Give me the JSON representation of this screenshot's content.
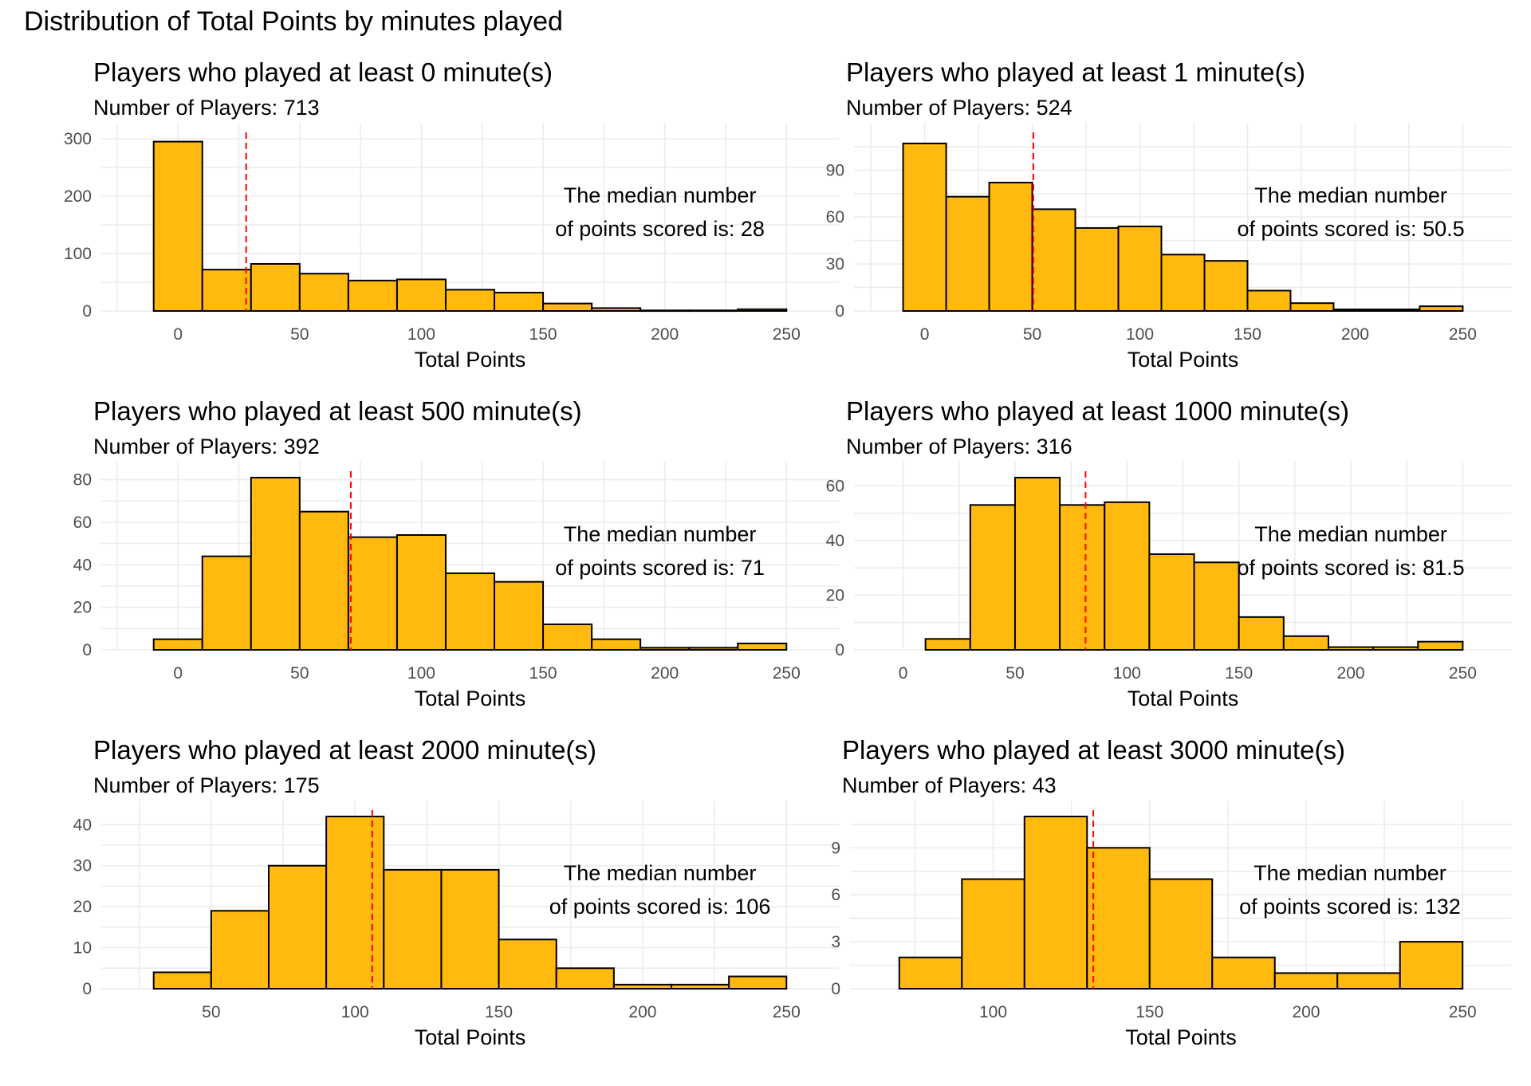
{
  "figure_title": "Distribution of Total Points by minutes played",
  "colors": {
    "bar_fill": "#FFB90F",
    "bar_stroke": "#000000",
    "median_line": "#FF0000",
    "grid": "#EBEBEB"
  },
  "chart_data": [
    {
      "type": "bar",
      "title": "Players who played at least 0 minute(s)",
      "subtitle": "Number of Players: 713",
      "xlabel": "Total Points",
      "ylabel": "",
      "bin_width": 20,
      "bin_centers": [
        0,
        20,
        40,
        60,
        80,
        100,
        120,
        140,
        160,
        180,
        200,
        220,
        240
      ],
      "values": [
        295,
        72,
        82,
        65,
        53,
        55,
        37,
        32,
        13,
        5,
        1,
        1,
        3
      ],
      "median": 28,
      "annotation_line1": "The median number",
      "annotation_line2": "of points scored is: 28",
      "xlim": [
        -10,
        250
      ],
      "ylim": [
        0,
        300
      ],
      "xticks": [
        0,
        50,
        100,
        150,
        200,
        250
      ],
      "xtick_labels": [
        "0",
        "50",
        "100",
        "150",
        "200",
        "250"
      ],
      "yticks": [
        0,
        100,
        200,
        300
      ],
      "ytick_labels": [
        "0",
        "100",
        "200",
        "300"
      ],
      "grid": true
    },
    {
      "type": "bar",
      "title": "Players who played at least 1 minute(s)",
      "subtitle": "Number of Players: 524",
      "xlabel": "Total Points",
      "ylabel": "",
      "bin_width": 20,
      "bin_centers": [
        0,
        20,
        40,
        60,
        80,
        100,
        120,
        140,
        160,
        180,
        200,
        220,
        240
      ],
      "values": [
        107,
        73,
        82,
        65,
        53,
        54,
        36,
        32,
        13,
        5,
        1,
        1,
        3
      ],
      "median": 50.5,
      "annotation_line1": "The median number",
      "annotation_line2": "of points scored is: 50.5",
      "xlim": [
        -10,
        250
      ],
      "ylim": [
        0,
        110
      ],
      "xticks": [
        0,
        50,
        100,
        150,
        200,
        250
      ],
      "xtick_labels": [
        "0",
        "50",
        "100",
        "150",
        "200",
        "250"
      ],
      "yticks": [
        0,
        30,
        60,
        90
      ],
      "ytick_labels": [
        "0",
        "30",
        "60",
        "90"
      ],
      "grid": true
    },
    {
      "type": "bar",
      "title": "Players who played at least 500 minute(s)",
      "subtitle": "Number of Players: 392",
      "xlabel": "Total Points",
      "ylabel": "",
      "bin_width": 20,
      "bin_centers": [
        0,
        20,
        40,
        60,
        80,
        100,
        120,
        140,
        160,
        180,
        200,
        220,
        240
      ],
      "values": [
        5,
        44,
        81,
        65,
        53,
        54,
        36,
        32,
        12,
        5,
        1,
        1,
        3
      ],
      "median": 71,
      "annotation_line1": "The median number",
      "annotation_line2": "of points scored is: 71",
      "xlim": [
        -10,
        250
      ],
      "ylim": [
        0,
        81
      ],
      "xticks": [
        0,
        50,
        100,
        150,
        200,
        250
      ],
      "xtick_labels": [
        "0",
        "50",
        "100",
        "150",
        "200",
        "250"
      ],
      "yticks": [
        0,
        20,
        40,
        60,
        80
      ],
      "ytick_labels": [
        "0",
        "20",
        "40",
        "60",
        "80"
      ],
      "grid": true
    },
    {
      "type": "bar",
      "title": "Players who played at least 1000 minute(s)",
      "subtitle": "Number of Players: 316",
      "xlabel": "Total Points",
      "ylabel": "",
      "bin_width": 20,
      "bin_centers": [
        20,
        40,
        60,
        80,
        100,
        120,
        140,
        160,
        180,
        200,
        220,
        240
      ],
      "values": [
        4,
        53,
        63,
        53,
        54,
        35,
        32,
        12,
        5,
        1,
        1,
        3
      ],
      "median": 81.5,
      "annotation_line1": "The median number",
      "annotation_line2": "of points scored is: 81.5",
      "xlim": [
        0,
        250
      ],
      "ylim": [
        0,
        63
      ],
      "xticks": [
        0,
        50,
        100,
        150,
        200,
        250
      ],
      "xtick_labels": [
        "0",
        "50",
        "100",
        "150",
        "200",
        "250"
      ],
      "yticks": [
        0,
        20,
        40,
        60
      ],
      "ytick_labels": [
        "0",
        "20",
        "40",
        "60"
      ],
      "grid": true
    },
    {
      "type": "bar",
      "title": "Players who played at least 2000 minute(s)",
      "subtitle": "Number of Players: 175",
      "xlabel": "Total Points",
      "ylabel": "",
      "bin_width": 20,
      "bin_centers": [
        40,
        60,
        80,
        100,
        120,
        140,
        160,
        180,
        200,
        220,
        240
      ],
      "values": [
        4,
        19,
        30,
        42,
        29,
        29,
        12,
        5,
        1,
        1,
        3
      ],
      "median": 106,
      "annotation_line1": "The median number",
      "annotation_line2": "of points scored is: 106",
      "xlim": [
        30,
        250
      ],
      "ylim": [
        0,
        42
      ],
      "xticks": [
        50,
        100,
        150,
        200,
        250
      ],
      "xtick_labels": [
        "50",
        "100",
        "150",
        "200",
        "250"
      ],
      "yticks": [
        0,
        10,
        20,
        30,
        40
      ],
      "ytick_labels": [
        "0",
        "10",
        "20",
        "30",
        "40"
      ],
      "grid": true
    },
    {
      "type": "bar",
      "title": "Players who played at least 3000 minute(s)",
      "subtitle": "Number of Players: 43",
      "xlabel": "Total Points",
      "ylabel": "",
      "bin_width": 20,
      "bin_centers": [
        80,
        100,
        120,
        140,
        160,
        180,
        200,
        220,
        240
      ],
      "values": [
        2,
        7,
        11,
        9,
        7,
        2,
        1,
        1,
        3
      ],
      "median": 132,
      "annotation_line1": "The median number",
      "annotation_line2": "of points scored is: 132",
      "xlim": [
        70,
        250
      ],
      "ylim": [
        0,
        11
      ],
      "xticks": [
        100,
        150,
        200,
        250
      ],
      "xtick_labels": [
        "100",
        "150",
        "200",
        "250"
      ],
      "yticks": [
        0,
        3,
        6,
        9
      ],
      "ytick_labels": [
        "0",
        "3",
        "6",
        "9"
      ],
      "grid": true
    }
  ]
}
